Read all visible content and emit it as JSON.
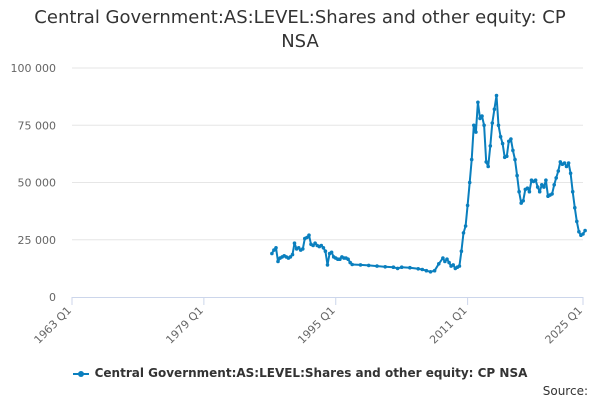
{
  "chart_data": {
    "type": "line",
    "title_lines": [
      "Central Government:AS:LEVEL:Shares and other equity: CP",
      "NSA"
    ],
    "xlabel": "",
    "ylabel": "",
    "x_ticks": [
      "1963 Q1",
      "1979 Q1",
      "1995 Q1",
      "2011 Q1",
      "2025 Q1"
    ],
    "x_range": [
      1963.0,
      2025.0
    ],
    "y_ticks": [
      "0",
      "25 000",
      "50 000",
      "75 000",
      "100 000"
    ],
    "y_range": [
      0,
      100000
    ],
    "grid": "horizontal",
    "legend_position": "bottom",
    "color": "#0a7fbe",
    "series": [
      {
        "name": "Central Government:AS:LEVEL:Shares and other equity: CP NSA",
        "points": [
          [
            1987.25,
            19000
          ],
          [
            1987.5,
            20500
          ],
          [
            1987.75,
            21500
          ],
          [
            1988.0,
            15500
          ],
          [
            1988.25,
            17000
          ],
          [
            1988.5,
            17500
          ],
          [
            1988.75,
            18000
          ],
          [
            1989.0,
            17500
          ],
          [
            1989.25,
            17000
          ],
          [
            1989.5,
            17500
          ],
          [
            1989.75,
            18500
          ],
          [
            1990.0,
            23500
          ],
          [
            1990.25,
            21000
          ],
          [
            1990.5,
            21500
          ],
          [
            1990.75,
            20500
          ],
          [
            1991.0,
            21000
          ],
          [
            1991.25,
            25500
          ],
          [
            1991.5,
            26000
          ],
          [
            1991.75,
            27000
          ],
          [
            1992.0,
            23000
          ],
          [
            1992.25,
            22500
          ],
          [
            1992.5,
            23500
          ],
          [
            1992.75,
            22500
          ],
          [
            1993.0,
            22000
          ],
          [
            1993.25,
            22500
          ],
          [
            1993.5,
            21500
          ],
          [
            1993.75,
            20000
          ],
          [
            1994.0,
            14000
          ],
          [
            1994.25,
            19000
          ],
          [
            1994.5,
            19500
          ],
          [
            1994.75,
            17500
          ],
          [
            1995.0,
            17000
          ],
          [
            1995.25,
            16500
          ],
          [
            1995.5,
            16500
          ],
          [
            1995.75,
            17500
          ],
          [
            1996.0,
            17000
          ],
          [
            1996.25,
            17000
          ],
          [
            1996.5,
            16500
          ],
          [
            1996.75,
            15000
          ],
          [
            1997.0,
            14200
          ],
          [
            1998.0,
            14000
          ],
          [
            1999.0,
            13800
          ],
          [
            2000.0,
            13500
          ],
          [
            2001.0,
            13200
          ],
          [
            2002.0,
            13000
          ],
          [
            2002.5,
            12500
          ],
          [
            2003.0,
            13000
          ],
          [
            2004.0,
            12800
          ],
          [
            2005.0,
            12300
          ],
          [
            2005.5,
            12000
          ],
          [
            2006.0,
            11500
          ],
          [
            2006.5,
            11000
          ],
          [
            2007.0,
            11500
          ],
          [
            2007.5,
            14500
          ],
          [
            2008.0,
            17000
          ],
          [
            2008.25,
            15500
          ],
          [
            2008.5,
            16500
          ],
          [
            2008.75,
            15000
          ],
          [
            2009.0,
            13500
          ],
          [
            2009.25,
            14000
          ],
          [
            2009.5,
            12500
          ],
          [
            2009.75,
            13000
          ],
          [
            2010.0,
            13500
          ],
          [
            2010.25,
            20000
          ],
          [
            2010.5,
            28000
          ],
          [
            2010.75,
            31000
          ],
          [
            2011.0,
            40000
          ],
          [
            2011.25,
            50000
          ],
          [
            2011.5,
            60000
          ],
          [
            2011.75,
            75000
          ],
          [
            2012.0,
            72000
          ],
          [
            2012.25,
            85000
          ],
          [
            2012.5,
            78000
          ],
          [
            2012.75,
            79000
          ],
          [
            2013.0,
            75000
          ],
          [
            2013.25,
            59000
          ],
          [
            2013.5,
            57000
          ],
          [
            2013.75,
            66000
          ],
          [
            2014.0,
            76000
          ],
          [
            2014.25,
            82000
          ],
          [
            2014.5,
            88000
          ],
          [
            2014.75,
            75000
          ],
          [
            2015.0,
            70000
          ],
          [
            2015.25,
            67000
          ],
          [
            2015.5,
            61000
          ],
          [
            2015.75,
            61500
          ],
          [
            2016.0,
            68000
          ],
          [
            2016.25,
            69000
          ],
          [
            2016.5,
            64000
          ],
          [
            2016.75,
            60000
          ],
          [
            2017.0,
            53000
          ],
          [
            2017.25,
            46000
          ],
          [
            2017.5,
            41000
          ],
          [
            2017.75,
            42000
          ],
          [
            2018.0,
            47000
          ],
          [
            2018.25,
            47500
          ],
          [
            2018.5,
            46000
          ],
          [
            2018.75,
            51000
          ],
          [
            2019.0,
            50500
          ],
          [
            2019.25,
            51000
          ],
          [
            2019.5,
            48000
          ],
          [
            2019.75,
            46000
          ],
          [
            2020.0,
            49000
          ],
          [
            2020.25,
            48000
          ],
          [
            2020.5,
            51000
          ],
          [
            2020.75,
            44000
          ],
          [
            2021.0,
            44500
          ],
          [
            2021.25,
            45000
          ],
          [
            2021.5,
            49000
          ],
          [
            2021.75,
            52000
          ],
          [
            2022.0,
            55000
          ],
          [
            2022.25,
            59000
          ],
          [
            2022.5,
            58000
          ],
          [
            2022.75,
            58500
          ],
          [
            2023.0,
            57000
          ],
          [
            2023.25,
            58500
          ],
          [
            2023.5,
            54000
          ],
          [
            2023.75,
            46000
          ],
          [
            2024.0,
            39000
          ],
          [
            2024.25,
            33000
          ],
          [
            2024.5,
            28500
          ],
          [
            2024.75,
            27000
          ],
          [
            2025.0,
            27500
          ],
          [
            2025.25,
            29000
          ]
        ]
      }
    ],
    "source_label": "Source:"
  }
}
